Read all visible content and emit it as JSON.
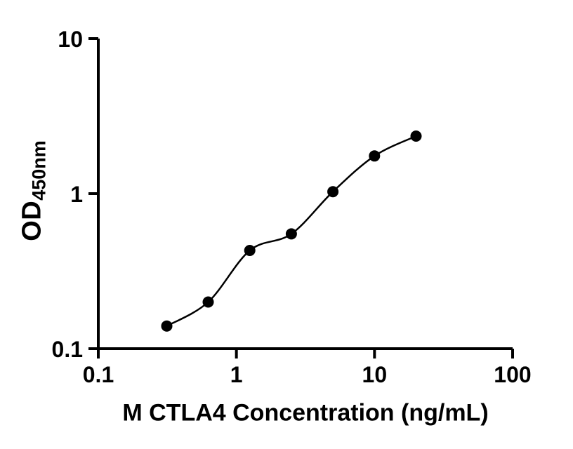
{
  "chart_data": {
    "type": "scatter",
    "title": "",
    "xlabel": "M CTLA4 Concentration (ng/mL)",
    "ylabel": {
      "main": "OD",
      "subscript": "450nm"
    },
    "xscale": "log",
    "yscale": "log",
    "xlim": [
      0.1,
      100
    ],
    "ylim": [
      0.1,
      10
    ],
    "grid": false,
    "legend": null,
    "x_ticks": [
      {
        "value": 0.1,
        "label": "0.1"
      },
      {
        "value": 1,
        "label": "1"
      },
      {
        "value": 10,
        "label": "10"
      },
      {
        "value": 100,
        "label": "100"
      }
    ],
    "y_ticks": [
      {
        "value": 0.1,
        "label": "0.1"
      },
      {
        "value": 1,
        "label": "1"
      },
      {
        "value": 10,
        "label": "10"
      }
    ],
    "points": [
      {
        "x": 0.313,
        "y": 0.14
      },
      {
        "x": 0.625,
        "y": 0.2
      },
      {
        "x": 1.25,
        "y": 0.43
      },
      {
        "x": 2.5,
        "y": 0.55
      },
      {
        "x": 5,
        "y": 1.03
      },
      {
        "x": 10,
        "y": 1.75
      },
      {
        "x": 20,
        "y": 2.35
      }
    ],
    "curve": {
      "style": "smooth-fit-through-points"
    },
    "colors": {
      "marker": "#000000",
      "line": "#000000",
      "axis": "#000000",
      "text": "#000000",
      "background": "#ffffff"
    }
  }
}
